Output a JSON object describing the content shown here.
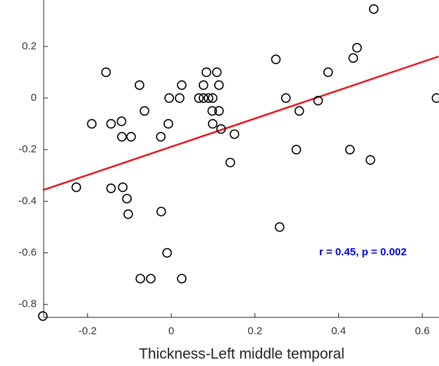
{
  "chart_data": {
    "type": "scatter",
    "xlabel": "Thickness-Left middle temporal",
    "annotation": "r = 0.45, p = 0.002",
    "annotation_color": "#0000dd",
    "marker_color": "#000000",
    "x": [
      -0.307,
      -0.227,
      -0.19,
      -0.156,
      -0.144,
      -0.144,
      -0.119,
      -0.118,
      -0.116,
      -0.106,
      -0.103,
      -0.096,
      -0.076,
      -0.064,
      -0.074,
      -0.049,
      -0.025,
      -0.024,
      -0.01,
      -0.007,
      -0.005,
      0.02,
      0.025,
      0.025,
      0.066,
      0.077,
      0.077,
      0.084,
      0.089,
      0.099,
      0.098,
      0.099,
      0.109,
      0.114,
      0.114,
      0.119,
      0.151,
      0.141,
      0.25,
      0.259,
      0.274,
      0.306,
      0.299,
      0.351,
      0.375,
      0.427,
      0.435,
      0.444,
      0.476,
      0.484,
      0.634
    ],
    "y": [
      -0.845,
      -0.346,
      -0.1,
      0.1,
      -0.1,
      -0.35,
      -0.09,
      -0.15,
      -0.346,
      -0.39,
      -0.45,
      -0.15,
      0.05,
      -0.05,
      -0.7,
      -0.7,
      -0.15,
      -0.44,
      -0.6,
      -0.1,
      0,
      0,
      0.05,
      -0.7,
      0,
      0.05,
      0,
      0.1,
      0,
      0,
      -0.05,
      -0.1,
      0.1,
      -0.05,
      0.05,
      -0.12,
      -0.14,
      -0.25,
      0.15,
      -0.5,
      0,
      -0.05,
      -0.2,
      -0.01,
      0.1,
      -0.2,
      0.155,
      0.195,
      -0.24,
      0.345,
      0
    ],
    "fit": {
      "color": "#e8141a",
      "x": [
        -0.307,
        0.639
      ],
      "y": [
        -0.357,
        0.161
      ]
    },
    "xlim": [
      -0.305,
      0.64
    ],
    "ylim": [
      -0.85,
      0.38
    ],
    "xticks": [
      -0.2,
      0,
      0.2,
      0.4,
      0.6
    ],
    "yticks": [
      -0.8,
      -0.6,
      -0.4,
      -0.2,
      0,
      0.2
    ]
  }
}
